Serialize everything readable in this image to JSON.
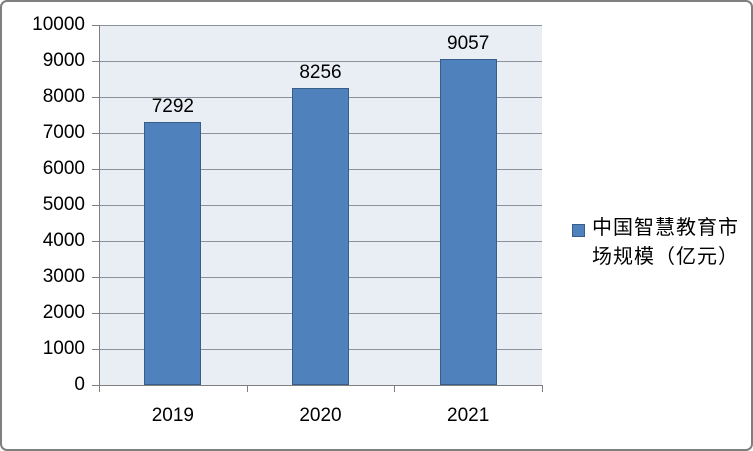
{
  "chart_data": {
    "type": "bar",
    "title": "",
    "categories": [
      "2019",
      "2020",
      "2021"
    ],
    "series": [
      {
        "name": "中国智慧教育市场规模（亿元）",
        "values": [
          7292,
          8256,
          9057
        ]
      }
    ],
    "data_labels": [
      "7292",
      "8256",
      "9057"
    ],
    "xlabel": "",
    "ylabel": "",
    "ylim": [
      0,
      10000
    ],
    "ytick_step": 1000,
    "ytick_labels": [
      "0",
      "1000",
      "2000",
      "3000",
      "4000",
      "5000",
      "6000",
      "7000",
      "8000",
      "9000",
      "10000"
    ],
    "grid": "horizontal",
    "legend_position": "right",
    "colors": {
      "bar_fill": "#4f81bd",
      "bar_border": "#385d8a",
      "plot_bg": "#e9edf4",
      "gridline": "#8c929c",
      "axis": "#7f7f7f",
      "frame_border": "#7f7f7f",
      "text": "#000000"
    }
  }
}
